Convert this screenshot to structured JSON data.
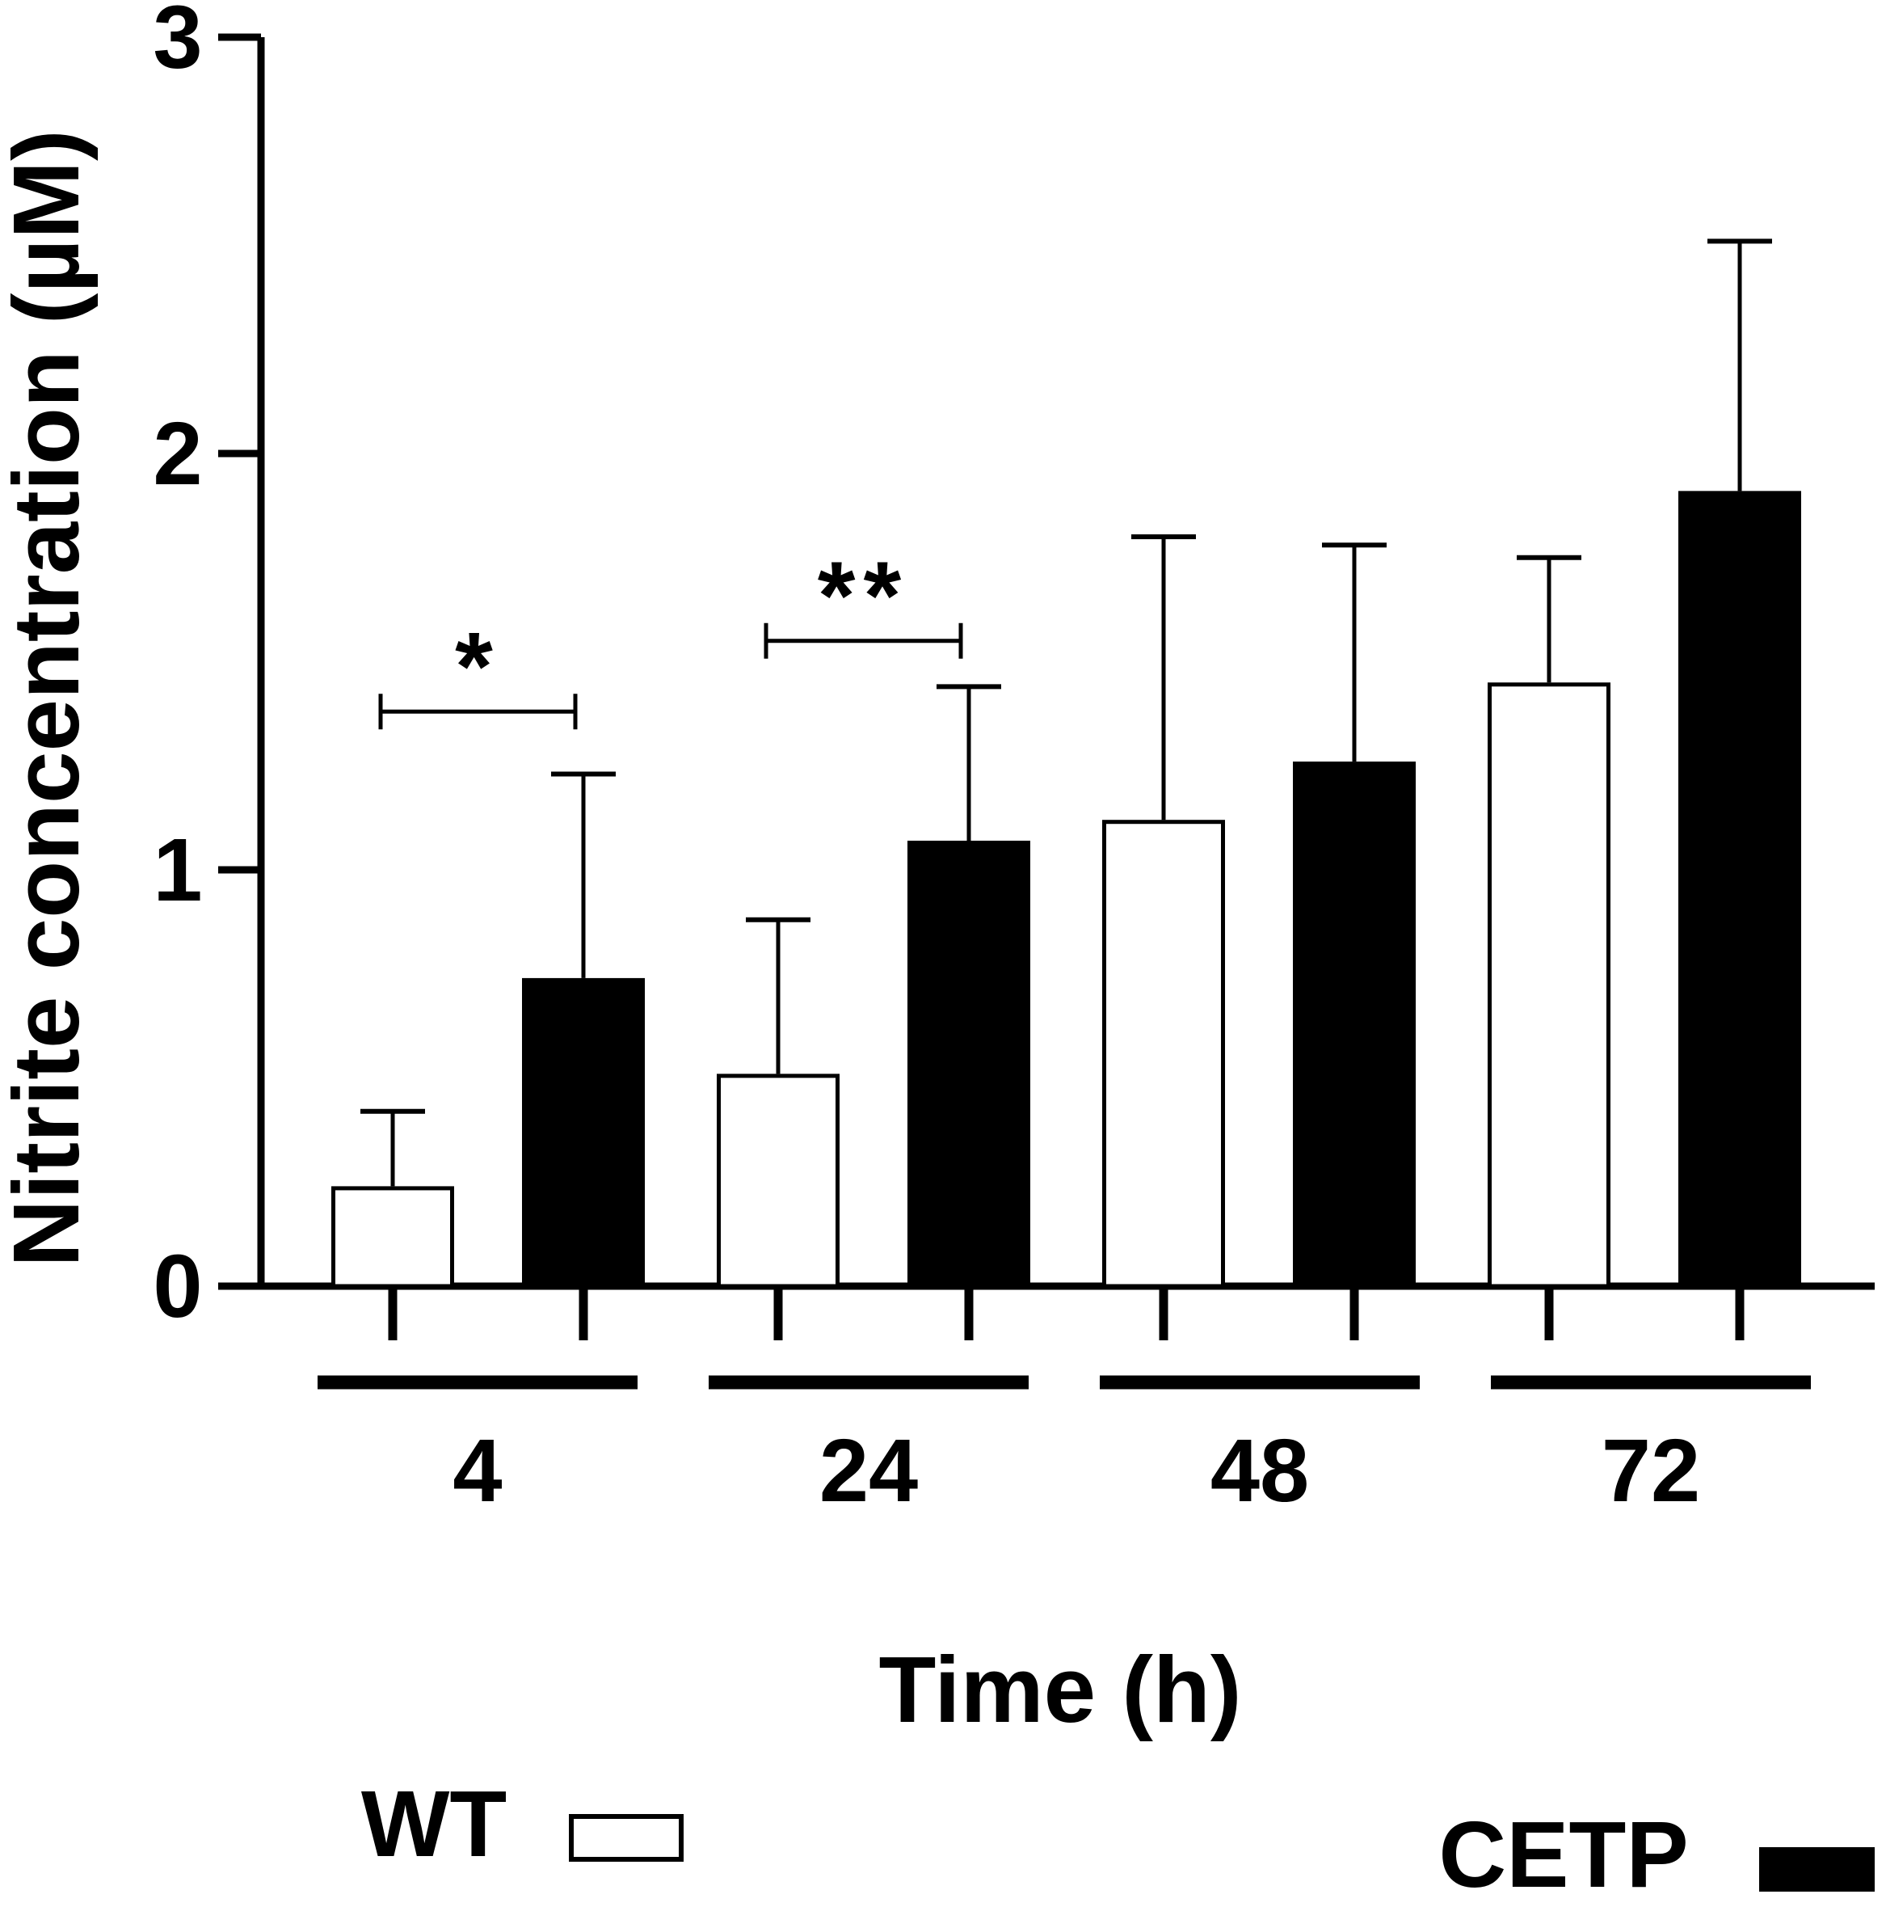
{
  "chart_data": {
    "type": "bar",
    "title": "",
    "xlabel": "Time (h)",
    "ylabel": "Nitrite concentration (µM)",
    "ylim": [
      0,
      3
    ],
    "yticks": [
      "0",
      "1",
      "2",
      "3"
    ],
    "categories": [
      "4",
      "24",
      "48",
      "72"
    ],
    "series": [
      {
        "name": "WT",
        "fill": "#ffffff",
        "values": [
          0.24,
          0.51,
          1.12,
          1.45
        ],
        "errors": [
          0.18,
          0.37,
          0.68,
          0.3
        ]
      },
      {
        "name": "CETP",
        "fill": "#000000",
        "values": [
          0.74,
          1.07,
          1.26,
          1.91
        ],
        "errors": [
          0.49,
          0.37,
          0.52,
          0.6
        ]
      }
    ],
    "significance": [
      {
        "category": "4",
        "label": "*",
        "bracket_y": 1.38
      },
      {
        "category": "24",
        "label": "**",
        "bracket_y": 1.55
      }
    ],
    "legend": [
      {
        "label": "WT",
        "fill": "#ffffff",
        "placement": "bottom-left"
      },
      {
        "label": "CETP",
        "fill": "#000000",
        "placement": "bottom-right"
      }
    ]
  }
}
